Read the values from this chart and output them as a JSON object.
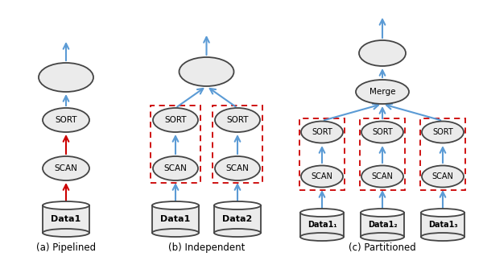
{
  "labels": {
    "a": "(a) Pipelined",
    "b": "(b) Independent",
    "c": "(c) Partitioned"
  },
  "colors": {
    "ellipse_face": "#ebebeb",
    "ellipse_edge": "#444444",
    "arrow_blue": "#5b9bd5",
    "arrow_red": "#CC0000",
    "dashed_box": "#CC0000"
  }
}
